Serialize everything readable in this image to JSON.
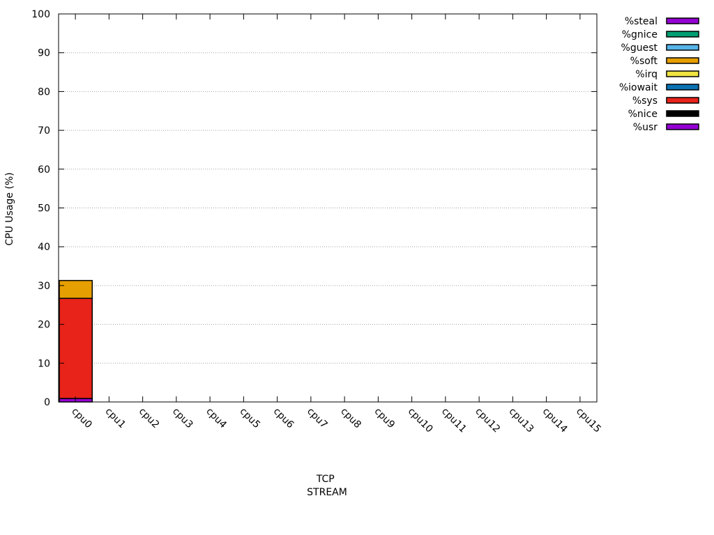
{
  "chart_data": {
    "type": "bar",
    "stacked": true,
    "categories": [
      "cpu0",
      "cpu1",
      "cpu2",
      "cpu3",
      "cpu4",
      "cpu5",
      "cpu6",
      "cpu7",
      "cpu8",
      "cpu9",
      "cpu10",
      "cpu11",
      "cpu12",
      "cpu13",
      "cpu14",
      "cpu15"
    ],
    "series": [
      {
        "name": "%usr",
        "color": "#9400d3",
        "values": [
          0.9,
          0,
          0,
          0,
          0,
          0,
          0,
          0,
          0,
          0,
          0,
          0,
          0,
          0,
          0,
          0
        ]
      },
      {
        "name": "%nice",
        "color": "#000000",
        "values": [
          0,
          0,
          0,
          0,
          0,
          0,
          0,
          0,
          0,
          0,
          0,
          0,
          0,
          0,
          0,
          0
        ]
      },
      {
        "name": "%sys",
        "color": "#e8231a",
        "values": [
          25.8,
          0,
          0,
          0,
          0,
          0,
          0,
          0,
          0,
          0,
          0,
          0,
          0,
          0,
          0,
          0
        ]
      },
      {
        "name": "%iowait",
        "color": "#0b72b2",
        "values": [
          0,
          0,
          0,
          0,
          0,
          0,
          0,
          0,
          0,
          0,
          0,
          0,
          0,
          0,
          0,
          0
        ]
      },
      {
        "name": "%irq",
        "color": "#f0e442",
        "values": [
          0,
          0,
          0,
          0,
          0,
          0,
          0,
          0,
          0,
          0,
          0,
          0,
          0,
          0,
          0,
          0
        ]
      },
      {
        "name": "%soft",
        "color": "#e69f00",
        "values": [
          4.6,
          0,
          0,
          0,
          0,
          0,
          0,
          0,
          0,
          0,
          0,
          0,
          0,
          0,
          0,
          0
        ]
      },
      {
        "name": "%guest",
        "color": "#56b4e9",
        "values": [
          0,
          0,
          0,
          0,
          0,
          0,
          0,
          0,
          0,
          0,
          0,
          0,
          0,
          0,
          0,
          0
        ]
      },
      {
        "name": "%gnice",
        "color": "#009e73",
        "values": [
          0,
          0,
          0,
          0,
          0,
          0,
          0,
          0,
          0,
          0,
          0,
          0,
          0,
          0,
          0,
          0
        ]
      },
      {
        "name": "%steal",
        "color": "#9400d3",
        "values": [
          0,
          0,
          0,
          0,
          0,
          0,
          0,
          0,
          0,
          0,
          0,
          0,
          0,
          0,
          0,
          0
        ]
      }
    ],
    "legend_order": [
      "%steal",
      "%gnice",
      "%guest",
      "%soft",
      "%irq",
      "%iowait",
      "%sys",
      "%nice",
      "%usr"
    ],
    "ylabel": "CPU Usage (%)",
    "xlabel_lines": [
      "TCP",
      "STREAM"
    ],
    "ylim": [
      0,
      100
    ],
    "yticks": [
      0,
      10,
      20,
      30,
      40,
      50,
      60,
      70,
      80,
      90,
      100
    ],
    "grid": true,
    "legend_position": "outside-top-right"
  }
}
